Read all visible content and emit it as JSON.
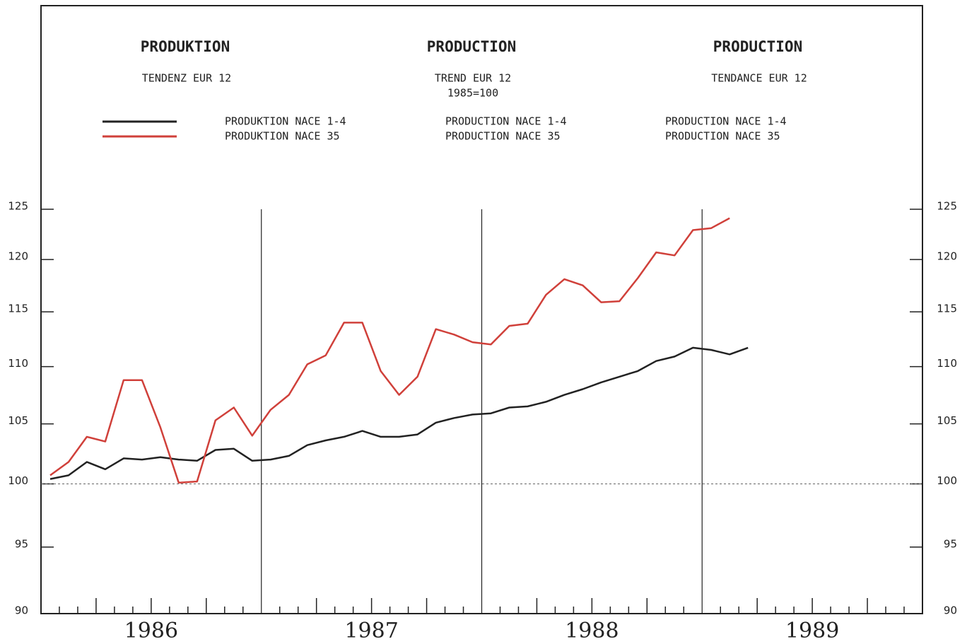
{
  "chart_data": {
    "type": "line",
    "header": [
      {
        "title": "PRODUKTION",
        "subtitle": [
          "TENDENZ EUR 12"
        ],
        "legend": [
          "PRODUKTION NACE 1-4",
          "PRODUKTION NACE 35"
        ]
      },
      {
        "title": "PRODUCTION",
        "subtitle": [
          "TREND EUR 12",
          "1985=100"
        ],
        "legend": [
          "PRODUCTION NACE 1-4",
          "PRODUCTION NACE 35"
        ]
      },
      {
        "title": "PRODUCTION",
        "subtitle": [
          "TENDANCE EUR 12"
        ],
        "legend": [
          "PRODUCTION NACE 1-4",
          "PRODUCTION NACE 35"
        ]
      }
    ],
    "year_labels": [
      "1986",
      "1987",
      "1988",
      "1989"
    ],
    "categories": [
      null,
      null,
      null,
      null,
      null,
      null,
      null,
      null,
      null,
      null,
      null,
      null,
      null,
      null,
      null,
      null,
      null,
      null,
      null,
      null,
      null,
      null,
      null,
      null,
      null,
      null,
      null,
      null,
      null,
      null,
      null,
      null,
      null,
      null,
      null,
      null,
      null,
      null,
      null,
      null,
      null,
      null,
      null,
      null,
      null,
      null,
      null,
      null
    ],
    "series": [
      {
        "name": "PRODUKTION NACE 1-4",
        "color": "#222222",
        "values": [
          100.4,
          100.7,
          101.8,
          101.2,
          102.1,
          102,
          102.2,
          102,
          101.9,
          102.8,
          102.9,
          101.9,
          102,
          102.3,
          103.2,
          103.6,
          103.9,
          104.4,
          103.9,
          103.9,
          104.1,
          105.1,
          105.5,
          105.8,
          105.9,
          106.4,
          106.5,
          106.9,
          107.5,
          108,
          108.6,
          109.1,
          109.6,
          110.5,
          110.9,
          111.7,
          111.5,
          111.1,
          111.7,
          null,
          null,
          null,
          null,
          null,
          null,
          null,
          null,
          null
        ]
      },
      {
        "name": "PRODUKTION NACE 35",
        "color": "#d0403a",
        "values": [
          100.7,
          101.8,
          103.9,
          103.5,
          108.8,
          108.8,
          104.7,
          100.1,
          100.2,
          105.3,
          106.4,
          104,
          106.2,
          107.5,
          110.2,
          111,
          114,
          114,
          109.6,
          107.5,
          109.1,
          113.4,
          112.9,
          112.2,
          112,
          113.7,
          113.9,
          116.6,
          118.1,
          117.5,
          115.9,
          116,
          118.2,
          120.7,
          120.4,
          122.9,
          123.1,
          124.1,
          null,
          null,
          null,
          null,
          null,
          null,
          null,
          null,
          null,
          null
        ]
      }
    ],
    "ylim": [
      90,
      125
    ],
    "yticks": [
      90,
      95,
      100,
      105,
      110,
      115,
      120,
      125
    ],
    "log_y": true,
    "reference_line": 100
  }
}
